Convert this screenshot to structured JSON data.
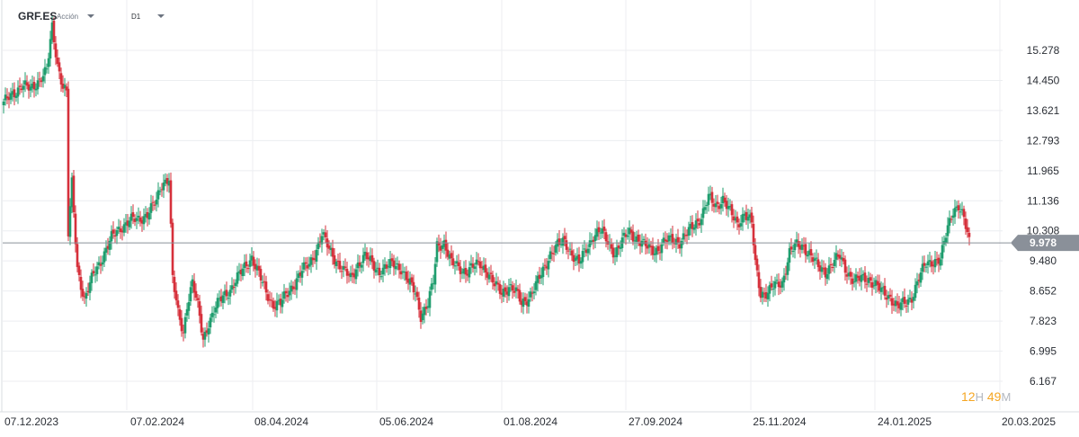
{
  "header": {
    "symbol": "GRF.ES",
    "instrument_type": "Acción",
    "timeframe": "D1"
  },
  "countdown": {
    "hours": "12",
    "hours_unit": "H",
    "minutes": "49",
    "minutes_unit": "M"
  },
  "colors": {
    "up": "#1f9d6e",
    "down": "#d6303b",
    "grid": "#eceef1",
    "price_line": "#8a9099",
    "price_tag": "#8a9099"
  },
  "chart_data": {
    "type": "candlestick",
    "y_ticks": [
      "15.278",
      "14.450",
      "13.621",
      "12.793",
      "11.965",
      "11.136",
      "10.308",
      "9.480",
      "8.652",
      "7.823",
      "6.995",
      "6.167"
    ],
    "x_ticks": [
      "07.12.2023",
      "07.02.2024",
      "08.04.2024",
      "05.06.2024",
      "01.08.2024",
      "27.09.2024",
      "25.11.2024",
      "24.01.2025",
      "20.03.2025"
    ],
    "ylim": [
      6.167,
      15.278
    ],
    "current_price": "9.978",
    "grid": true,
    "close_trajectory": [
      [
        0,
        13.8
      ],
      [
        5,
        14.1
      ],
      [
        10,
        14.3
      ],
      [
        15,
        14.2
      ],
      [
        20,
        14.5
      ],
      [
        24,
        14.7
      ],
      [
        27,
        15.9
      ],
      [
        30,
        14.9
      ],
      [
        33,
        14.3
      ],
      [
        35,
        14.1
      ],
      [
        36,
        10.2
      ],
      [
        38,
        11.6
      ],
      [
        41,
        9.3
      ],
      [
        45,
        8.4
      ],
      [
        50,
        9.1
      ],
      [
        55,
        9.6
      ],
      [
        60,
        10.1
      ],
      [
        65,
        10.4
      ],
      [
        70,
        10.6
      ],
      [
        75,
        10.6
      ],
      [
        80,
        10.8
      ],
      [
        85,
        11.1
      ],
      [
        88,
        11.6
      ],
      [
        92,
        11.8
      ],
      [
        94,
        9.0
      ],
      [
        97,
        8.0
      ],
      [
        100,
        7.5
      ],
      [
        102,
        8.3
      ],
      [
        105,
        8.9
      ],
      [
        108,
        8.2
      ],
      [
        111,
        7.3
      ],
      [
        114,
        7.8
      ],
      [
        118,
        8.2
      ],
      [
        122,
        8.5
      ],
      [
        126,
        8.7
      ],
      [
        130,
        9.0
      ],
      [
        134,
        9.3
      ],
      [
        138,
        9.6
      ],
      [
        142,
        9.1
      ],
      [
        146,
        8.6
      ],
      [
        150,
        8.3
      ],
      [
        154,
        8.3
      ],
      [
        158,
        8.6
      ],
      [
        162,
        8.9
      ],
      [
        166,
        9.2
      ],
      [
        170,
        9.4
      ],
      [
        174,
        9.8
      ],
      [
        177,
        10.2
      ],
      [
        181,
        9.8
      ],
      [
        185,
        9.5
      ],
      [
        189,
        9.2
      ],
      [
        193,
        9.0
      ],
      [
        197,
        9.4
      ],
      [
        201,
        9.6
      ],
      [
        205,
        9.4
      ],
      [
        209,
        9.2
      ],
      [
        213,
        9.3
      ],
      [
        217,
        9.4
      ],
      [
        221,
        9.3
      ],
      [
        225,
        8.9
      ],
      [
        229,
        8.6
      ],
      [
        232,
        8.0
      ],
      [
        236,
        8.3
      ],
      [
        239,
        8.9
      ],
      [
        241,
        9.9
      ],
      [
        245,
        10.0
      ],
      [
        249,
        9.4
      ],
      [
        253,
        9.3
      ],
      [
        257,
        9.2
      ],
      [
        261,
        9.3
      ],
      [
        265,
        9.4
      ],
      [
        269,
        9.2
      ],
      [
        273,
        8.8
      ],
      [
        277,
        8.6
      ],
      [
        281,
        8.8
      ],
      [
        285,
        8.6
      ],
      [
        288,
        8.3
      ],
      [
        292,
        8.5
      ],
      [
        296,
        8.8
      ],
      [
        300,
        9.2
      ],
      [
        304,
        9.7
      ],
      [
        308,
        9.9
      ],
      [
        312,
        10.0
      ],
      [
        316,
        9.7
      ],
      [
        320,
        9.4
      ],
      [
        324,
        9.8
      ],
      [
        328,
        10.2
      ],
      [
        332,
        10.3
      ],
      [
        336,
        10.0
      ],
      [
        340,
        9.7
      ],
      [
        344,
        10.0
      ],
      [
        348,
        10.3
      ],
      [
        352,
        10.1
      ],
      [
        356,
        9.9
      ],
      [
        360,
        9.8
      ],
      [
        364,
        9.8
      ],
      [
        368,
        10.0
      ],
      [
        372,
        10.1
      ],
      [
        376,
        10.0
      ],
      [
        380,
        10.2
      ],
      [
        384,
        10.5
      ],
      [
        388,
        10.7
      ],
      [
        392,
        11.2
      ],
      [
        396,
        11.0
      ],
      [
        400,
        11.2
      ],
      [
        404,
        10.8
      ],
      [
        408,
        10.5
      ],
      [
        412,
        10.8
      ],
      [
        416,
        10.5
      ],
      [
        418,
        9.4
      ],
      [
        421,
        8.6
      ],
      [
        425,
        8.6
      ],
      [
        429,
        8.8
      ],
      [
        433,
        8.9
      ],
      [
        437,
        9.7
      ],
      [
        441,
        9.9
      ],
      [
        445,
        9.9
      ],
      [
        449,
        9.6
      ],
      [
        453,
        9.3
      ],
      [
        457,
        9.2
      ],
      [
        461,
        9.4
      ],
      [
        465,
        9.6
      ],
      [
        469,
        9.2
      ],
      [
        473,
        8.9
      ],
      [
        477,
        9.0
      ],
      [
        481,
        9.0
      ],
      [
        485,
        8.8
      ],
      [
        489,
        8.6
      ],
      [
        493,
        8.5
      ],
      [
        497,
        8.2
      ],
      [
        501,
        8.3
      ],
      [
        505,
        8.5
      ],
      [
        509,
        9.0
      ],
      [
        513,
        9.4
      ],
      [
        517,
        9.5
      ],
      [
        521,
        9.5
      ],
      [
        525,
        10.4
      ],
      [
        528,
        10.9
      ],
      [
        531,
        11.0
      ],
      [
        534,
        10.6
      ],
      [
        537,
        10.0
      ]
    ]
  }
}
